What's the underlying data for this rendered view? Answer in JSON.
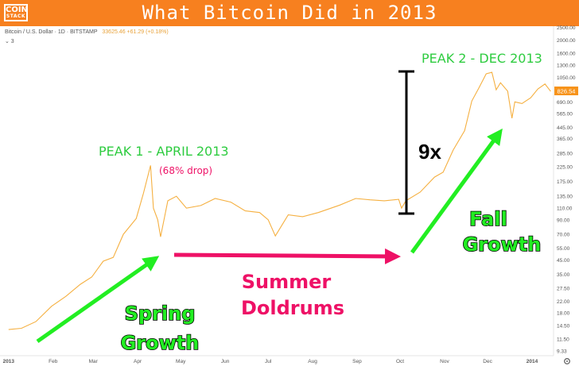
{
  "banner": {
    "logo_top": "COIN",
    "logo_bottom": "STACK",
    "title": "What Bitcoin Did in 2013"
  },
  "header": {
    "symbol": "Bitcoin / U.S. Dollar · 1D · BITSTAMP",
    "ohlc": "33625.46 +61.29 (+0.18%)",
    "indicator": "⌄ 3"
  },
  "colors": {
    "banner": "#f7801f",
    "price_line": "#f5b041",
    "green": "#2ecc40",
    "pink": "#ee1166",
    "arrow_green": "#22ee22",
    "last_price_bg": "#f7931a"
  },
  "annotations": {
    "peak1": "PEAK 1 - APRIL 2013",
    "drop": "(68% drop)",
    "peak2": "PEAK 2 - DEC 2013",
    "multiplier": "9x",
    "spring_1": "Spring",
    "spring_2": "Growth",
    "summer_1": "Summer",
    "summer_2": "Doldrums",
    "fall_1": "Fall",
    "fall_2": "Growth"
  },
  "chart_data": {
    "type": "line",
    "scale": "log",
    "x_axis": [
      "2013",
      "Feb",
      "Mar",
      "Apr",
      "May",
      "Jun",
      "Jul",
      "Aug",
      "Sep",
      "Oct",
      "Nov",
      "Dec",
      "2014"
    ],
    "y_ticks": [
      9.33,
      11.5,
      14.5,
      18.0,
      22.0,
      27.5,
      35.0,
      45.0,
      55.0,
      70.0,
      90.0,
      110.0,
      135.0,
      175.0,
      225.0,
      285.0,
      365.0,
      445.0,
      565.0,
      690.0,
      1050.0,
      1300.0,
      1600.0,
      2000.0,
      2500.0
    ],
    "last_price": "826.54",
    "ylim": [
      8.6,
      2550
    ],
    "series": [
      {
        "points": [
          [
            "2013-01-01",
            13.5
          ],
          [
            "2013-01-10",
            13.8
          ],
          [
            "2013-01-20",
            15.5
          ],
          [
            "2013-01-31",
            20.2
          ],
          [
            "2013-02-10",
            24.0
          ],
          [
            "2013-02-20",
            29.5
          ],
          [
            "2013-02-28",
            33.5
          ],
          [
            "2013-03-08",
            44.0
          ],
          [
            "2013-03-15",
            47.0
          ],
          [
            "2013-03-22",
            70.0
          ],
          [
            "2013-03-31",
            92.0
          ],
          [
            "2013-04-05",
            142.0
          ],
          [
            "2013-04-10",
            230.0
          ],
          [
            "2013-04-12",
            110.0
          ],
          [
            "2013-04-15",
            90.0
          ],
          [
            "2013-04-17",
            67.0
          ],
          [
            "2013-04-22",
            125.0
          ],
          [
            "2013-04-28",
            135.0
          ],
          [
            "2013-05-05",
            110.0
          ],
          [
            "2013-05-15",
            115.0
          ],
          [
            "2013-05-25",
            130.0
          ],
          [
            "2013-06-05",
            122.0
          ],
          [
            "2013-06-15",
            105.0
          ],
          [
            "2013-06-25",
            102.0
          ],
          [
            "2013-07-01",
            90.0
          ],
          [
            "2013-07-06",
            68.0
          ],
          [
            "2013-07-15",
            98.0
          ],
          [
            "2013-07-25",
            95.0
          ],
          [
            "2013-08-05",
            102.0
          ],
          [
            "2013-08-20",
            116.0
          ],
          [
            "2013-08-31",
            130.0
          ],
          [
            "2013-09-10",
            127.0
          ],
          [
            "2013-09-20",
            125.0
          ],
          [
            "2013-09-30",
            128.0
          ],
          [
            "2013-10-02",
            110.0
          ],
          [
            "2013-10-05",
            125.0
          ],
          [
            "2013-10-15",
            145.0
          ],
          [
            "2013-10-25",
            188.0
          ],
          [
            "2013-10-31",
            205.0
          ],
          [
            "2013-11-07",
            300.0
          ],
          [
            "2013-11-15",
            420.0
          ],
          [
            "2013-11-20",
            700.0
          ],
          [
            "2013-11-25",
            880.0
          ],
          [
            "2013-11-30",
            1120.0
          ],
          [
            "2013-12-04",
            1150.0
          ],
          [
            "2013-12-07",
            850.0
          ],
          [
            "2013-12-10",
            960.0
          ],
          [
            "2013-12-15",
            830.0
          ],
          [
            "2013-12-18",
            520.0
          ],
          [
            "2013-12-20",
            690.0
          ],
          [
            "2013-12-25",
            670.0
          ],
          [
            "2013-12-31",
            740.0
          ],
          [
            "2014-01-05",
            860.0
          ],
          [
            "2014-01-10",
            940.0
          ],
          [
            "2014-01-14",
            826.54
          ]
        ]
      }
    ]
  }
}
